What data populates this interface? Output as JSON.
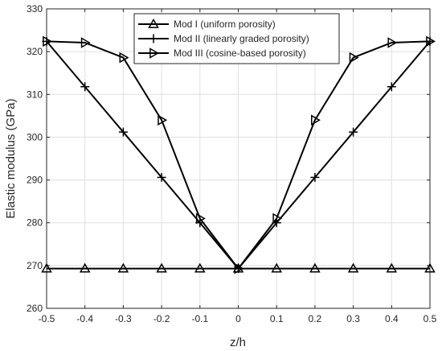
{
  "chart_data": {
    "type": "line",
    "xlabel": "z/h",
    "ylabel": "Elastic modulus (GPa)",
    "xlim": [
      -0.5,
      0.5
    ],
    "ylim": [
      260,
      330
    ],
    "x_ticks": [
      -0.5,
      -0.4,
      -0.3,
      -0.2,
      -0.1,
      0,
      0.1,
      0.2,
      0.3,
      0.4,
      0.5
    ],
    "y_ticks": [
      260,
      270,
      280,
      290,
      300,
      310,
      320,
      330
    ],
    "x_tick_labels": [
      "-0.5",
      "-0.4",
      "-0.3",
      "-0.2",
      "-0.1",
      "0",
      "0.1",
      "0.2",
      "0.3",
      "0.4",
      "0.5"
    ],
    "y_tick_labels": [
      "260",
      "270",
      "280",
      "290",
      "300",
      "310",
      "320",
      "330"
    ],
    "grid": true,
    "legend_position": "top-center",
    "x": [
      -0.5,
      -0.4,
      -0.3,
      -0.2,
      -0.1,
      0,
      0.1,
      0.2,
      0.3,
      0.4,
      0.5
    ],
    "series": [
      {
        "name": "Mod I (uniform porosity)",
        "marker": "triangle-up",
        "color": "#000000",
        "values": [
          269.3,
          269.3,
          269.3,
          269.3,
          269.3,
          269.3,
          269.3,
          269.3,
          269.3,
          269.3,
          269.3
        ]
      },
      {
        "name": "Mod II (linearly graded porosity)",
        "marker": "plus",
        "color": "#000000",
        "values": [
          322.4,
          311.8,
          301.2,
          290.6,
          280.0,
          269.3,
          280.0,
          290.6,
          301.2,
          311.8,
          322.4
        ]
      },
      {
        "name": "Mod III (cosine-based porosity)",
        "marker": "triangle-right",
        "color": "#000000",
        "values": [
          322.4,
          322.1,
          318.6,
          304.0,
          281.0,
          269.3,
          281.0,
          304.0,
          318.6,
          322.1,
          322.4
        ]
      }
    ]
  }
}
